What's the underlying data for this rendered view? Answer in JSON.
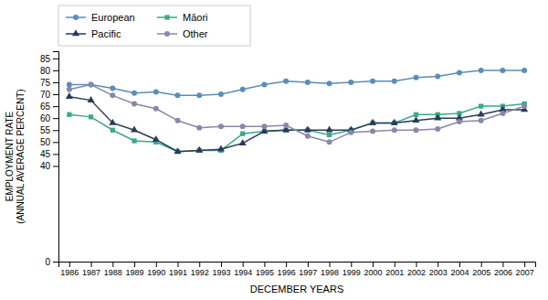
{
  "chart_data": {
    "type": "line",
    "xlabel": "DECEMBER YEARS",
    "ylabel": "EMPLOYMENT RATE\n(ANNUAL AVERAGE PERCENT)",
    "x": [
      1986,
      1987,
      1988,
      1989,
      1990,
      1991,
      1992,
      1993,
      1994,
      1995,
      1996,
      1997,
      1998,
      1999,
      2000,
      2001,
      2002,
      2003,
      2004,
      2005,
      2006,
      2007
    ],
    "series": [
      {
        "name": "European",
        "color": "#5b8db8",
        "marker": "circle",
        "values": [
          74,
          74,
          72.5,
          70.5,
          71,
          69.5,
          69.5,
          70,
          72,
          74,
          75.5,
          75,
          74.5,
          75,
          75.5,
          75.5,
          77,
          77.5,
          79,
          80,
          80,
          80
        ]
      },
      {
        "name": "Māori",
        "color": "#3aaa8a",
        "marker": "square",
        "values": [
          61.5,
          60.5,
          55,
          50.5,
          50,
          46,
          46.5,
          46.5,
          53.5,
          54.5,
          55,
          55,
          53,
          55,
          58,
          58,
          61.5,
          61.5,
          62,
          65,
          65,
          66
        ]
      },
      {
        "name": "Pacific",
        "color": "#2d3a5a",
        "marker": "triangle",
        "values": [
          69,
          67.5,
          58,
          55,
          51,
          46,
          46.5,
          47,
          49.5,
          54.5,
          55,
          55,
          55,
          55,
          58,
          58,
          59,
          60,
          60,
          61.5,
          63.5,
          63.5
        ]
      },
      {
        "name": "Other",
        "color": "#8888aa",
        "marker": "circle",
        "values": [
          72,
          74,
          69.5,
          66,
          64,
          59,
          56,
          56.5,
          56.5,
          56.5,
          57,
          52.5,
          50,
          54,
          54.5,
          55,
          55,
          55.5,
          58.5,
          59,
          62,
          65
        ]
      }
    ],
    "xlim": [
      1985.5,
      2007.5
    ],
    "xticks": [
      1986,
      1987,
      1988,
      1989,
      1990,
      1991,
      1992,
      1993,
      1994,
      1995,
      1996,
      1997,
      1998,
      1999,
      2000,
      2001,
      2002,
      2003,
      2004,
      2005,
      2006,
      2007
    ],
    "ylim": [
      0,
      88
    ],
    "yticks": [
      0,
      40,
      45,
      50,
      55,
      60,
      65,
      70,
      75,
      80,
      85
    ],
    "grid": false,
    "legend": "top"
  }
}
